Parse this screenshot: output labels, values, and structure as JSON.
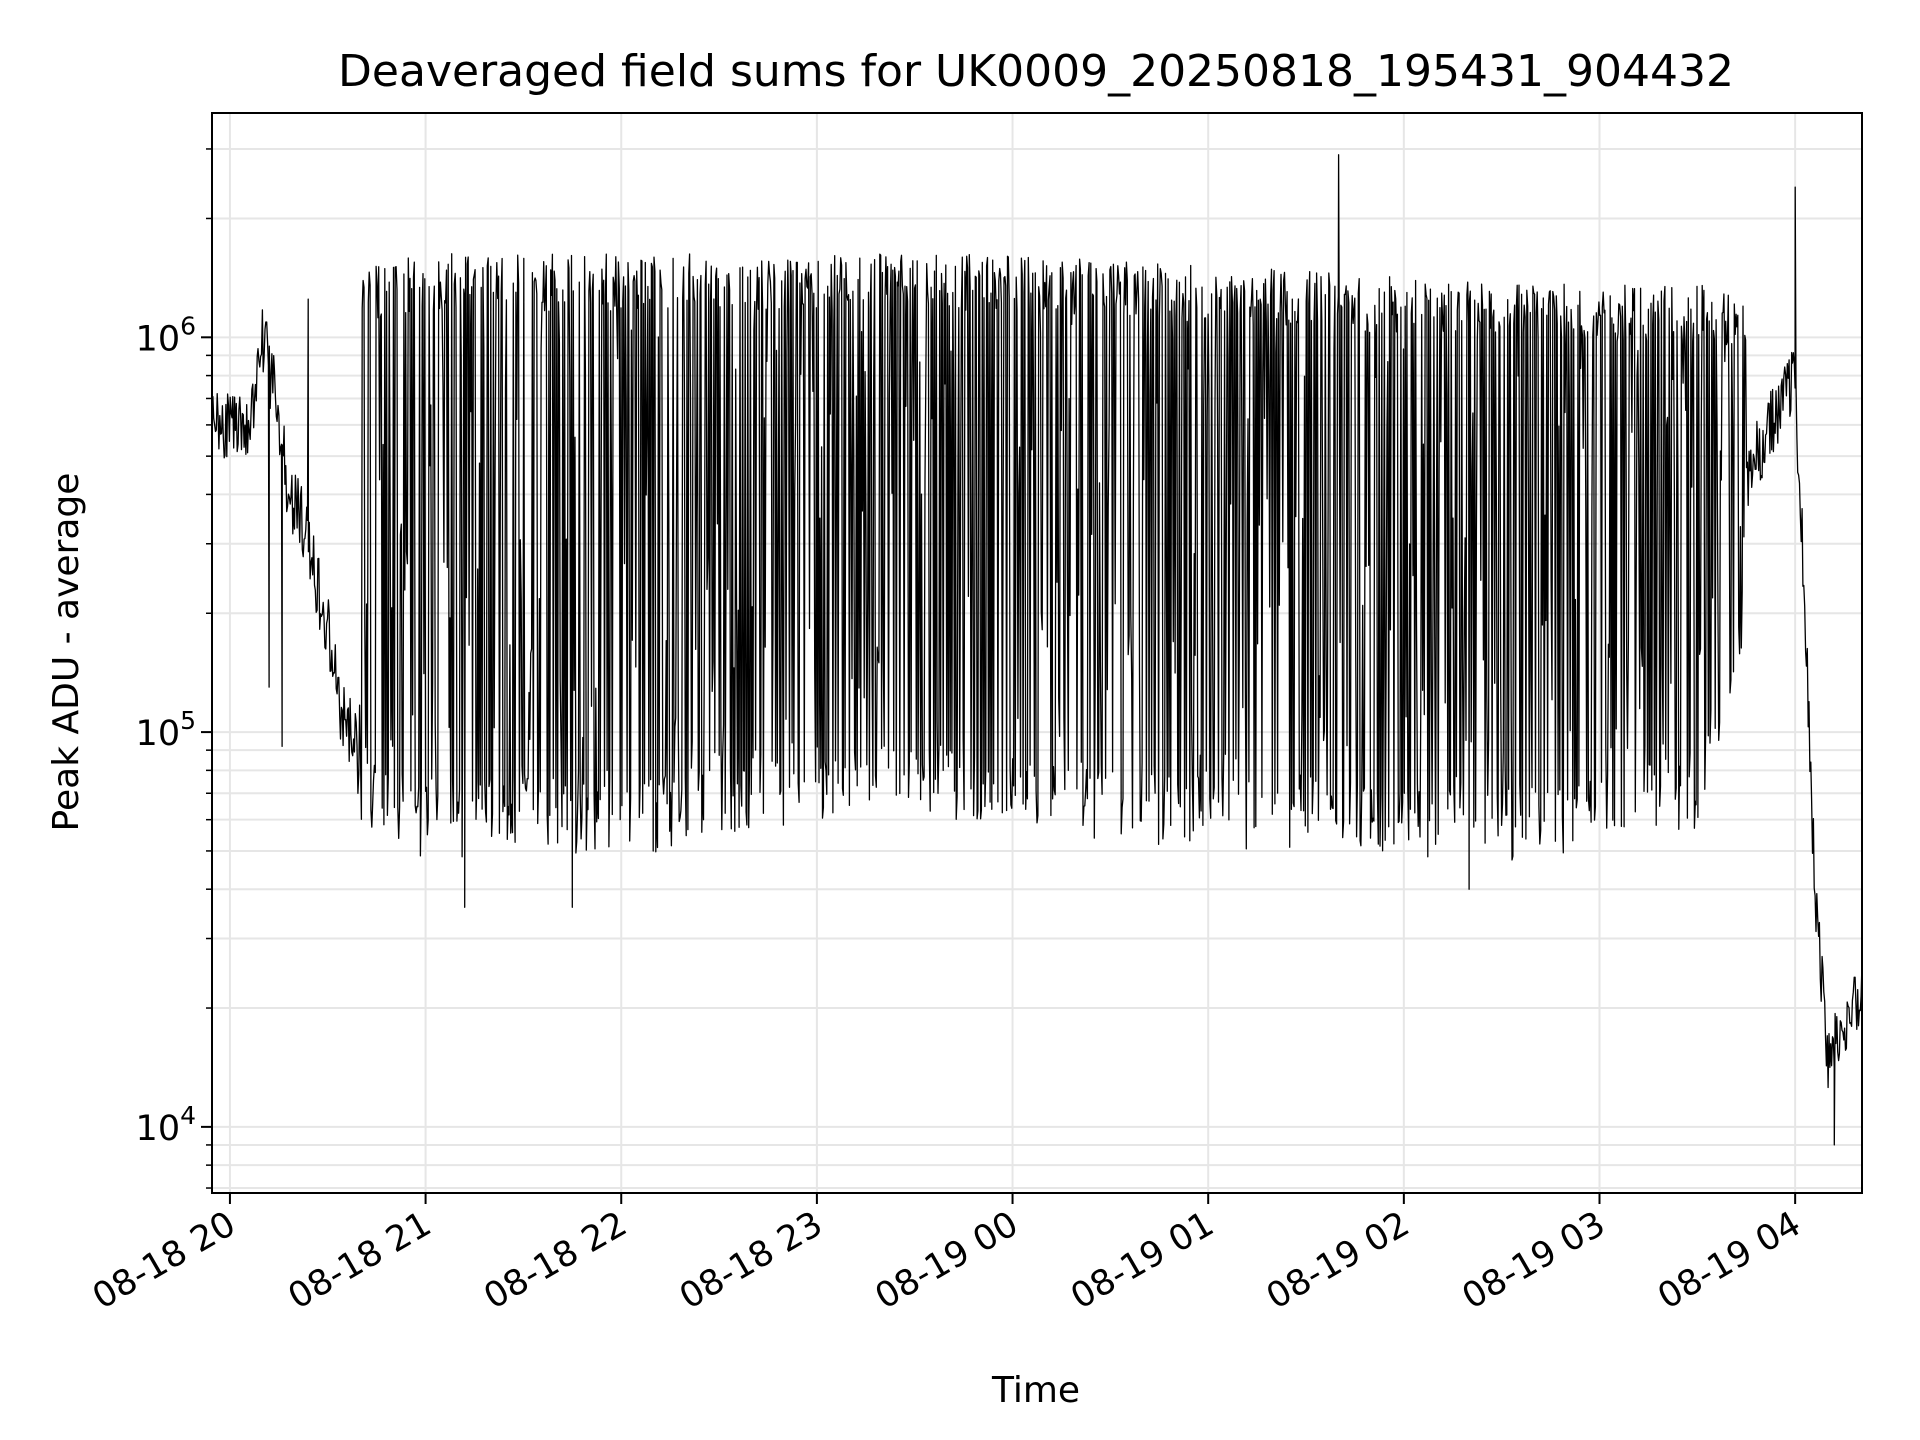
{
  "chart_data": {
    "type": "line",
    "title": "Deaveraged field sums for UK0009_20250818_195431_904432",
    "xlabel": "Time",
    "ylabel": "Peak ADU - average",
    "yscale": "log",
    "ylim": [
      6800,
      3700000
    ],
    "xlim": [
      "2025-08-18 19:54:30",
      "2025-08-19 04:20:30"
    ],
    "x_ticks": [
      "08-18 20",
      "08-18 21",
      "08-18 22",
      "08-18 23",
      "08-19 00",
      "08-19 01",
      "08-19 02",
      "08-19 03",
      "08-19 04"
    ],
    "y_ticks": [
      {
        "base": "10",
        "exp": "4",
        "value": 10000
      },
      {
        "base": "10",
        "exp": "5",
        "value": 100000
      },
      {
        "base": "10",
        "exp": "6",
        "value": 1000000
      }
    ],
    "grid": true,
    "line_color": "#000000",
    "series": [
      {
        "x": [
          "2025-08-18 19:54:30",
          "2025-08-18 19:58",
          "2025-08-18 20:02",
          "2025-08-18 20:06",
          "2025-08-18 20:10",
          "2025-08-18 20:14",
          "2025-08-18 20:18",
          "2025-08-18 20:22",
          "2025-08-18 20:26",
          "2025-08-18 20:30",
          "2025-08-18 20:34",
          "2025-08-18 20:38",
          "2025-08-18 20:42",
          "2025-08-18 20:46",
          "2025-08-18 20:50",
          "2025-08-18 21:00",
          "2025-08-18 21:30",
          "2025-08-18 22:00",
          "2025-08-18 22:30",
          "2025-08-18 23:00",
          "2025-08-18 23:30",
          "2025-08-19 00:00",
          "2025-08-19 00:30",
          "2025-08-19 01:00",
          "2025-08-19 01:30",
          "2025-08-19 02:00",
          "2025-08-19 02:30",
          "2025-08-19 03:00",
          "2025-08-19 03:30",
          "2025-08-19 03:45",
          "2025-08-19 04:00",
          "2025-08-19 04:03",
          "2025-08-19 04:06",
          "2025-08-19 04:10",
          "2025-08-19 04:15",
          "2025-08-19 04:20"
        ],
        "y": [
          650000,
          600000,
          600000,
          620000,
          1000000,
          700000,
          400000,
          350000,
          250000,
          180000,
          110000,
          100000,
          95000,
          90000,
          80000,
          70000,
          300000,
          400000,
          500000,
          500000,
          600000,
          550000,
          550000,
          500000,
          450000,
          300000,
          280000,
          250000,
          300000,
          450000,
          800000,
          200000,
          40000,
          15000,
          18000,
          22000
        ]
      }
    ],
    "series_envelope": {
      "x": [
        "2025-08-18 20:39",
        "2025-08-18 21:00",
        "2025-08-18 21:30",
        "2025-08-18 22:00",
        "2025-08-18 22:30",
        "2025-08-18 23:00",
        "2025-08-18 23:30",
        "2025-08-19 00:00",
        "2025-08-19 00:30",
        "2025-08-19 01:00",
        "2025-08-19 01:30",
        "2025-08-19 02:00",
        "2025-08-19 02:30",
        "2025-08-19 03:00",
        "2025-08-19 03:30",
        "2025-08-19 03:45"
      ],
      "y_high": [
        1450000,
        1550000,
        1550000,
        1550000,
        1550000,
        1550000,
        1550000,
        1550000,
        1500000,
        1450000,
        1400000,
        1350000,
        1300000,
        1300000,
        1300000,
        1200000
      ],
      "y_low": [
        70000,
        55000,
        60000,
        55000,
        65000,
        70000,
        70000,
        65000,
        62000,
        60000,
        58000,
        55000,
        55000,
        58000,
        65000,
        200000
      ]
    },
    "notable_points": [
      {
        "x": "2025-08-18 20:24",
        "y": 1250000
      },
      {
        "x": "2025-08-18 20:12",
        "y": 130000
      },
      {
        "x": "2025-08-18 20:16",
        "y": 92000
      },
      {
        "x": "2025-08-18 21:12",
        "y": 36000
      },
      {
        "x": "2025-08-18 21:45",
        "y": 36000
      },
      {
        "x": "2025-08-19 01:40",
        "y": 2900000
      },
      {
        "x": "2025-08-19 02:20",
        "y": 40000
      },
      {
        "x": "2025-08-19 04:00",
        "y": 2400000
      },
      {
        "x": "2025-08-19 04:12",
        "y": 9000
      }
    ]
  }
}
